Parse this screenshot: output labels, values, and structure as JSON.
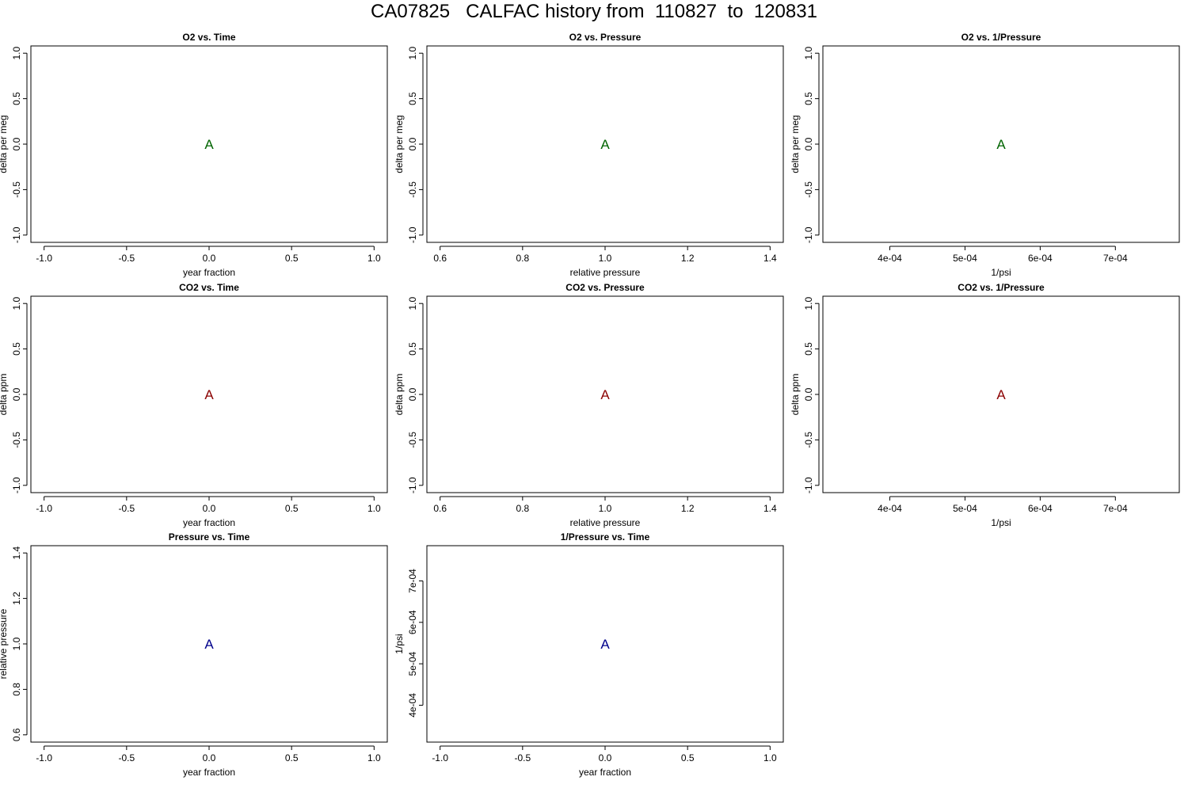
{
  "title": "CA07825   CALFAC history from  110827  to  120831",
  "chart_data": [
    {
      "type": "scatter",
      "title": "O2 vs. Time",
      "xlabel": "year fraction",
      "ylabel": "delta per meg",
      "xlim": [
        -1.08,
        1.08
      ],
      "ylim": [
        -1.08,
        1.08
      ],
      "xticks": [
        -1.0,
        -0.5,
        0.0,
        0.5,
        1.0
      ],
      "xtick_labels": [
        "-1.0",
        "-0.5",
        "0.0",
        "0.5",
        "1.0"
      ],
      "yticks": [
        -1.0,
        -0.5,
        0.0,
        0.5,
        1.0
      ],
      "ytick_labels": [
        "-1.0",
        "-0.5",
        "0.0",
        "0.5",
        "1.0"
      ],
      "color": "#006400",
      "points": [
        {
          "x": 0.0,
          "y": 0.0,
          "label": "A"
        }
      ]
    },
    {
      "type": "scatter",
      "title": "O2 vs. Pressure",
      "xlabel": "relative pressure",
      "ylabel": "delta per meg",
      "xlim": [
        0.568,
        1.432
      ],
      "ylim": [
        -1.08,
        1.08
      ],
      "xticks": [
        0.6,
        0.8,
        1.0,
        1.2,
        1.4
      ],
      "xtick_labels": [
        "0.6",
        "0.8",
        "1.0",
        "1.2",
        "1.4"
      ],
      "yticks": [
        -1.0,
        -0.5,
        0.0,
        0.5,
        1.0
      ],
      "ytick_labels": [
        "-1.0",
        "-0.5",
        "0.0",
        "0.5",
        "1.0"
      ],
      "color": "#006400",
      "points": [
        {
          "x": 1.0,
          "y": 0.0,
          "label": "A"
        }
      ]
    },
    {
      "type": "scatter",
      "title": "O2 vs. 1/Pressure",
      "xlabel": "1/psi",
      "ylabel": "delta per meg",
      "xlim": [
        0.000311,
        0.000785
      ],
      "ylim": [
        -1.08,
        1.08
      ],
      "xticks": [
        0.0004,
        0.0005,
        0.0006,
        0.0007
      ],
      "xtick_labels": [
        "4e-04",
        "5e-04",
        "6e-04",
        "7e-04"
      ],
      "yticks": [
        -1.0,
        -0.5,
        0.0,
        0.5,
        1.0
      ],
      "ytick_labels": [
        "-1.0",
        "-0.5",
        "0.0",
        "0.5",
        "1.0"
      ],
      "color": "#006400",
      "points": [
        {
          "x": 0.000548,
          "y": 0.0,
          "label": "A"
        }
      ]
    },
    {
      "type": "scatter",
      "title": "CO2 vs. Time",
      "xlabel": "year fraction",
      "ylabel": "delta ppm",
      "xlim": [
        -1.08,
        1.08
      ],
      "ylim": [
        -1.08,
        1.08
      ],
      "xticks": [
        -1.0,
        -0.5,
        0.0,
        0.5,
        1.0
      ],
      "xtick_labels": [
        "-1.0",
        "-0.5",
        "0.0",
        "0.5",
        "1.0"
      ],
      "yticks": [
        -1.0,
        -0.5,
        0.0,
        0.5,
        1.0
      ],
      "ytick_labels": [
        "-1.0",
        "-0.5",
        "0.0",
        "0.5",
        "1.0"
      ],
      "color": "#8b0000",
      "points": [
        {
          "x": 0.0,
          "y": 0.0,
          "label": "A"
        }
      ]
    },
    {
      "type": "scatter",
      "title": "CO2 vs. Pressure",
      "xlabel": "relative pressure",
      "ylabel": "delta ppm",
      "xlim": [
        0.568,
        1.432
      ],
      "ylim": [
        -1.08,
        1.08
      ],
      "xticks": [
        0.6,
        0.8,
        1.0,
        1.2,
        1.4
      ],
      "xtick_labels": [
        "0.6",
        "0.8",
        "1.0",
        "1.2",
        "1.4"
      ],
      "yticks": [
        -1.0,
        -0.5,
        0.0,
        0.5,
        1.0
      ],
      "ytick_labels": [
        "-1.0",
        "-0.5",
        "0.0",
        "0.5",
        "1.0"
      ],
      "color": "#8b0000",
      "points": [
        {
          "x": 1.0,
          "y": 0.0,
          "label": "A"
        }
      ]
    },
    {
      "type": "scatter",
      "title": "CO2 vs. 1/Pressure",
      "xlabel": "1/psi",
      "ylabel": "delta ppm",
      "xlim": [
        0.000311,
        0.000785
      ],
      "ylim": [
        -1.08,
        1.08
      ],
      "xticks": [
        0.0004,
        0.0005,
        0.0006,
        0.0007
      ],
      "xtick_labels": [
        "4e-04",
        "5e-04",
        "6e-04",
        "7e-04"
      ],
      "yticks": [
        -1.0,
        -0.5,
        0.0,
        0.5,
        1.0
      ],
      "ytick_labels": [
        "-1.0",
        "-0.5",
        "0.0",
        "0.5",
        "1.0"
      ],
      "color": "#8b0000",
      "points": [
        {
          "x": 0.000548,
          "y": 0.0,
          "label": "A"
        }
      ]
    },
    {
      "type": "scatter",
      "title": "Pressure vs. Time",
      "xlabel": "year fraction",
      "ylabel": "relative pressure",
      "xlim": [
        -1.08,
        1.08
      ],
      "ylim": [
        0.568,
        1.432
      ],
      "xticks": [
        -1.0,
        -0.5,
        0.0,
        0.5,
        1.0
      ],
      "xtick_labels": [
        "-1.0",
        "-0.5",
        "0.0",
        "0.5",
        "1.0"
      ],
      "yticks": [
        0.6,
        0.8,
        1.0,
        1.2,
        1.4
      ],
      "ytick_labels": [
        "0.6",
        "0.8",
        "1.0",
        "1.2",
        "1.4"
      ],
      "color": "#00008b",
      "points": [
        {
          "x": 0.0,
          "y": 1.0,
          "label": "A"
        }
      ]
    },
    {
      "type": "scatter",
      "title": "1/Pressure vs. Time",
      "xlabel": "year fraction",
      "ylabel": "1/psi",
      "xlim": [
        -1.08,
        1.08
      ],
      "ylim": [
        0.000311,
        0.000785
      ],
      "xticks": [
        -1.0,
        -0.5,
        0.0,
        0.5,
        1.0
      ],
      "xtick_labels": [
        "-1.0",
        "-0.5",
        "0.0",
        "0.5",
        "1.0"
      ],
      "yticks": [
        0.0004,
        0.0005,
        0.0006,
        0.0007
      ],
      "ytick_labels": [
        "4e-04",
        "5e-04",
        "6e-04",
        "7e-04"
      ],
      "color": "#00008b",
      "points": [
        {
          "x": 0.0,
          "y": 0.000548,
          "label": "A"
        }
      ]
    }
  ]
}
